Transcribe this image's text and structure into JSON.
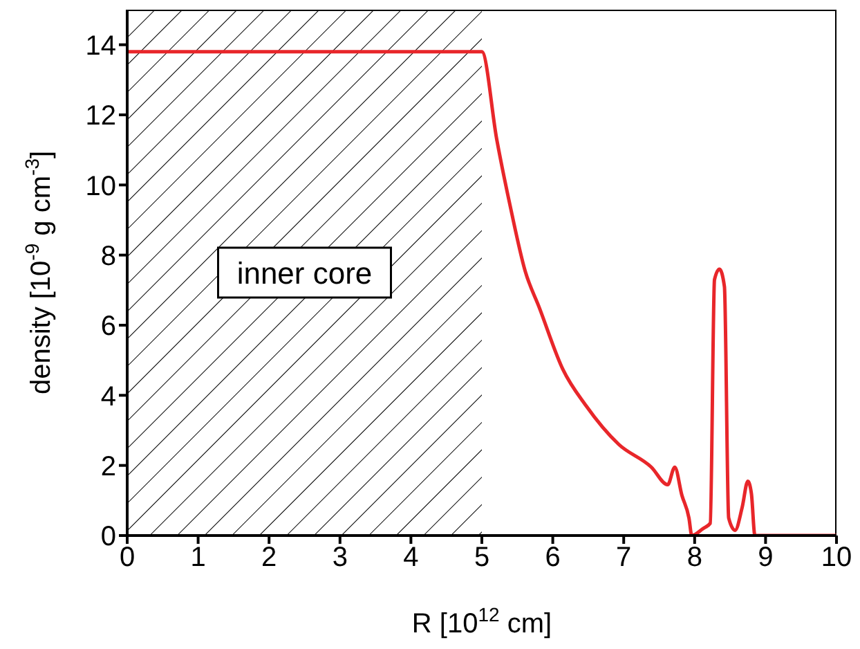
{
  "chart_data": {
    "type": "line",
    "xlabel": "R [10$^{12}$ cm]",
    "ylabel": "density [10$^{-9}$ g cm$^{-3}$]",
    "xlim": [
      0,
      10
    ],
    "xticks": [
      0,
      1,
      2,
      3,
      4,
      5,
      6,
      7,
      8,
      9,
      10
    ],
    "ylim": [
      0,
      15
    ],
    "yticks": [
      0,
      2,
      4,
      6,
      8,
      10,
      12,
      14
    ],
    "grid": false,
    "legend": false,
    "marker": "none",
    "line_style": "solid",
    "series": [
      {
        "color": "#e8262a",
        "x": [
          0,
          5,
          5.21,
          5.41,
          5.61,
          5.81,
          6.14,
          6.47,
          6.93,
          7.39,
          7.62,
          7.72,
          7.82,
          7.92,
          7.96,
          8.12,
          8.22,
          8.28,
          8.35,
          8.42,
          8.48,
          8.57,
          8.67,
          8.75,
          8.8,
          8.85,
          9,
          10
        ],
        "values": [
          13.8,
          13.8,
          11.3,
          9.3,
          7.55,
          6.5,
          4.75,
          3.7,
          2.6,
          1.95,
          1.45,
          1.95,
          1.15,
          0.5,
          0,
          0.2,
          0.35,
          7.3,
          7.6,
          7.1,
          0.5,
          0.15,
          0.8,
          1.55,
          1.2,
          0,
          0,
          0
        ]
      }
    ],
    "bands": [
      {
        "axis": "x",
        "from": 0,
        "to": 5,
        "label": "inner core"
      }
    ]
  }
}
